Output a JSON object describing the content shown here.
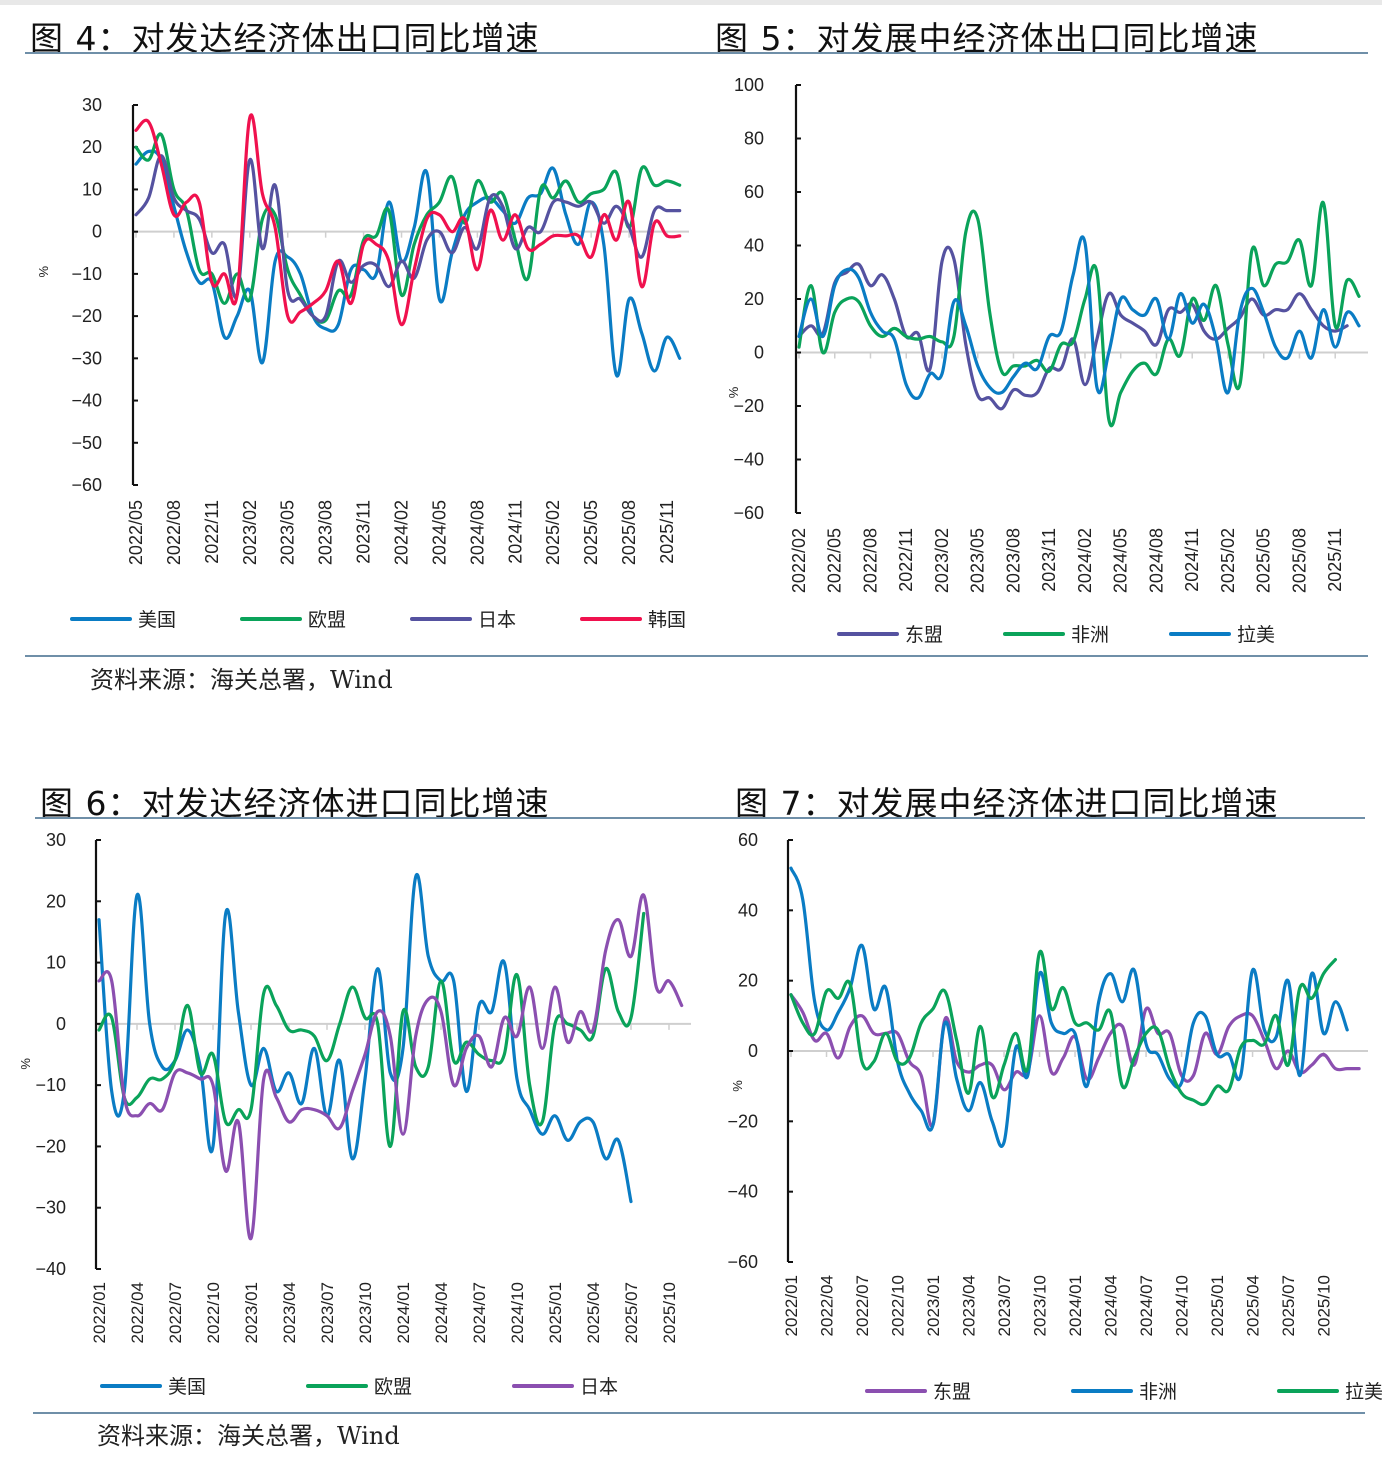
{
  "figures": {
    "fig4": {
      "title": "图 4：对发达经济体出口同比增速"
    },
    "fig5": {
      "title": "图 5：对发展中经济体出口同比增速"
    },
    "fig6": {
      "title": "图 6：对发达经济体进口同比增速"
    },
    "fig7": {
      "title": "图 7：对发展中经济体进口同比增速"
    }
  },
  "sources": {
    "top": "资料来源：海关总署，Wind",
    "bottom": "资料来源：海关总署，Wind"
  },
  "chart_data": [
    {
      "id": "fig4",
      "type": "line",
      "title": "图 4：对发达经济体出口同比增速",
      "xlabel": "",
      "ylabel": "%",
      "ylim": [
        -60,
        30
      ],
      "yticks": [
        30,
        20,
        10,
        0,
        -10,
        -20,
        -30,
        -40,
        -50,
        -60
      ],
      "x_start": "2022/05",
      "xtick_labels": [
        "2022/05",
        "2022/08",
        "2022/11",
        "2023/02",
        "2023/05",
        "2023/08",
        "2023/11",
        "2024/02",
        "2024/05",
        "2024/08",
        "2024/11",
        "2025/02",
        "2025/05",
        "2025/08",
        "2025/11"
      ],
      "legend_position": "bottom",
      "grid": false,
      "series": [
        {
          "name": "美国",
          "color": "#0a7cc4",
          "values": [
            16,
            19,
            17,
            6,
            -5,
            -12,
            -12,
            -25,
            -20,
            -14,
            -31,
            -7,
            -6,
            -10,
            -20,
            -23,
            -22,
            -9,
            -9,
            -10,
            7,
            -7,
            1,
            14,
            -16,
            -5,
            4,
            7,
            8,
            5,
            2,
            8,
            9,
            15,
            4,
            -3,
            7,
            -3,
            -34,
            -16,
            -24,
            -33,
            -25,
            -30
          ]
        },
        {
          "name": "欧盟",
          "color": "#0aa35a",
          "values": [
            20,
            17,
            23,
            10,
            5,
            -9,
            -10,
            -17,
            -10,
            -16,
            3,
            4,
            -9,
            -15,
            -20,
            -21,
            -14,
            -15,
            -2,
            -1,
            5,
            -15,
            -3,
            4,
            7,
            13,
            2,
            12,
            7,
            9,
            -2,
            -11,
            10,
            8,
            12,
            7,
            9,
            10,
            14,
            1,
            15,
            11,
            12,
            11
          ]
        },
        {
          "name": "日本",
          "color": "#5552a0",
          "values": [
            4,
            8,
            18,
            8,
            5,
            3,
            -5,
            -3,
            -15,
            17,
            -4,
            11,
            -14,
            -16,
            -20,
            -20,
            -7,
            -12,
            -8,
            -8,
            -13,
            -7,
            -11,
            -2,
            0,
            -5,
            1,
            -4,
            8,
            6,
            -4,
            1,
            0,
            7,
            7,
            6,
            7,
            2,
            6,
            1,
            -6,
            5,
            5,
            5
          ]
        },
        {
          "name": "韩国",
          "color": "#f0114e",
          "values": [
            24,
            26,
            16,
            4,
            7,
            7,
            -12,
            -10,
            -15,
            27,
            9,
            1,
            -20,
            -19,
            -17,
            -14,
            -7,
            -17,
            -3,
            -3,
            -7,
            -22,
            -9,
            3,
            4,
            0,
            3,
            -9,
            5,
            -2,
            4,
            -4,
            -3,
            -1,
            -1,
            -1,
            -6,
            4,
            -2,
            7,
            -13,
            2,
            -1,
            -1
          ]
        }
      ]
    },
    {
      "id": "fig5",
      "type": "line",
      "title": "图 5：对发展中经济体出口同比增速",
      "xlabel": "",
      "ylabel": "%",
      "ylim": [
        -60,
        100
      ],
      "yticks": [
        100,
        80,
        60,
        40,
        20,
        0,
        -20,
        -40,
        -60
      ],
      "x_start": "2022/02",
      "xtick_labels": [
        "2022/02",
        "2022/05",
        "2022/08",
        "2022/11",
        "2023/02",
        "2023/05",
        "2023/08",
        "2023/11",
        "2024/02",
        "2024/05",
        "2024/08",
        "2024/11",
        "2025/02",
        "2025/05",
        "2025/08",
        "2025/11"
      ],
      "legend_position": "bottom",
      "grid": false,
      "series": [
        {
          "name": "东盟",
          "color": "#5552a0",
          "values": [
            6,
            10,
            7,
            26,
            30,
            33,
            25,
            29,
            20,
            6,
            7,
            -6,
            34,
            35,
            3,
            -16,
            -17,
            -21,
            -14,
            -16,
            -15,
            -6,
            -6,
            5,
            -12,
            5,
            22,
            14,
            11,
            8,
            3,
            16,
            15,
            18,
            8,
            5,
            9,
            13,
            20,
            14,
            16,
            16,
            22,
            16,
            10,
            8,
            10
          ]
        },
        {
          "name": "非洲",
          "color": "#0aa35a",
          "values": [
            2,
            25,
            0,
            15,
            20,
            19,
            10,
            6,
            9,
            6,
            5,
            6,
            4,
            6,
            45,
            50,
            15,
            -7,
            -5,
            -5,
            -3,
            -7,
            3,
            4,
            20,
            30,
            -25,
            -15,
            -7,
            -4,
            -8,
            5,
            -1,
            20,
            12,
            25,
            3,
            -12,
            38,
            25,
            33,
            34,
            42,
            25,
            56,
            10,
            27,
            21
          ]
        },
        {
          "name": "拉美",
          "color": "#0a7cc4",
          "values": [
            6,
            20,
            6,
            25,
            31,
            28,
            15,
            8,
            5,
            -12,
            -17,
            -8,
            -8,
            19,
            10,
            -5,
            -13,
            -15,
            -9,
            -4,
            -6,
            6,
            8,
            29,
            41,
            -13,
            0,
            20,
            16,
            14,
            20,
            5,
            22,
            11,
            18,
            5,
            -15,
            15,
            24,
            15,
            2,
            -2,
            8,
            -2,
            16,
            2,
            15,
            10
          ]
        }
      ]
    },
    {
      "id": "fig6",
      "type": "line",
      "title": "图 6：对发达经济体进口同比增速",
      "xlabel": "",
      "ylabel": "%",
      "ylim": [
        -40,
        30
      ],
      "yticks": [
        30,
        20,
        10,
        0,
        -10,
        -20,
        -30,
        -40
      ],
      "x_start": "2022/01",
      "xtick_labels": [
        "2022/01",
        "2022/04",
        "2022/07",
        "2022/10",
        "2023/01",
        "2023/04",
        "2023/07",
        "2023/10",
        "2024/01",
        "2024/04",
        "2024/07",
        "2024/10",
        "2025/01",
        "2025/04",
        "2025/07",
        "2025/10"
      ],
      "legend_position": "bottom",
      "grid": false,
      "series": [
        {
          "name": "美国",
          "color": "#0a7cc4",
          "values": [
            17,
            -11,
            -11,
            21,
            0,
            -7,
            -6,
            -1,
            -7,
            -20,
            18,
            2,
            -10,
            -4,
            -11,
            -8,
            -13,
            -4,
            -15,
            -6,
            -22,
            -9,
            9,
            -8,
            -4,
            24,
            11,
            7,
            7,
            -11,
            3,
            2,
            10,
            -9,
            -14,
            -18,
            -15,
            -19,
            -16,
            -16,
            -22,
            -19,
            -29
          ]
        },
        {
          "name": "欧盟",
          "color": "#0aa35a",
          "values": [
            -1,
            1,
            -12,
            -12,
            -9,
            -9,
            -6,
            3,
            -8,
            -5,
            -16,
            -14,
            -14,
            5,
            3,
            -1,
            -1,
            -2,
            -6,
            0,
            6,
            1,
            0,
            -20,
            2,
            -7,
            -7,
            7,
            -6,
            -3,
            -5,
            -6,
            -5,
            8,
            -10,
            -16,
            0,
            0,
            -1,
            -2,
            9,
            2,
            1,
            18
          ]
        },
        {
          "name": "日本",
          "color": "#8b4fb0",
          "values": [
            7,
            7,
            -12,
            -15,
            -13,
            -14,
            -8,
            -8,
            -9,
            -10,
            -24,
            -16,
            -35,
            -9,
            -12,
            -16,
            -14,
            -14,
            -15,
            -17,
            -11,
            -5,
            2,
            -2,
            -18,
            -2,
            4,
            2,
            -10,
            -4,
            -2,
            -7,
            1,
            -2,
            6,
            -4,
            6,
            -3,
            2,
            -1,
            12,
            17,
            11,
            21,
            6,
            7,
            3
          ]
        }
      ]
    },
    {
      "id": "fig7",
      "type": "line",
      "title": "图 7：对发展中经济体进口同比增速",
      "xlabel": "",
      "ylabel": "%",
      "ylim": [
        -60,
        60
      ],
      "yticks": [
        60,
        40,
        20,
        0,
        -20,
        -40,
        -60
      ],
      "x_start": "2022/01",
      "xtick_labels": [
        "2022/01",
        "2022/04",
        "2022/07",
        "2022/10",
        "2023/01",
        "2023/04",
        "2023/07",
        "2023/10",
        "2024/01",
        "2024/04",
        "2024/07",
        "2024/10",
        "2025/01",
        "2025/04",
        "2025/07",
        "2025/10"
      ],
      "legend_position": "bottom",
      "grid": false,
      "series": [
        {
          "name": "东盟",
          "color": "#8b4fb0",
          "values": [
            16,
            11,
            3,
            5,
            -2,
            7,
            10,
            5,
            5,
            5,
            -3,
            -7,
            -21,
            9,
            -3,
            -6,
            -4,
            -4,
            -11,
            -6,
            -6,
            10,
            -6,
            -2,
            4,
            -8,
            -2,
            5,
            7,
            -4,
            12,
            5,
            5,
            -7,
            -7,
            5,
            -1,
            7,
            10,
            10,
            3,
            -5,
            0,
            -6,
            -4,
            -1,
            -5,
            -5,
            -5
          ]
        },
        {
          "name": "非洲",
          "color": "#0a7cc4",
          "values": [
            52,
            43,
            14,
            6,
            11,
            18,
            30,
            12,
            18,
            -3,
            -12,
            -17,
            -21,
            8,
            -8,
            -17,
            -9,
            -20,
            -26,
            1,
            -7,
            22,
            8,
            5,
            5,
            -10,
            14,
            22,
            14,
            23,
            2,
            -1,
            -8,
            -9,
            8,
            10,
            -1,
            -1,
            -7,
            23,
            6,
            4,
            20,
            -7,
            22,
            5,
            14,
            6
          ]
        },
        {
          "name": "拉美",
          "color": "#0aa35a",
          "values": [
            16,
            8,
            5,
            17,
            15,
            19,
            -3,
            -3,
            5,
            -3,
            -2,
            8,
            12,
            17,
            3,
            -12,
            7,
            -13,
            -4,
            5,
            -5,
            28,
            12,
            18,
            8,
            8,
            6,
            11,
            -10,
            -2,
            5,
            6,
            -5,
            -12,
            -14,
            -15,
            -10,
            -11,
            1,
            3,
            2,
            10,
            -4,
            18,
            15,
            22,
            26
          ]
        }
      ]
    }
  ]
}
